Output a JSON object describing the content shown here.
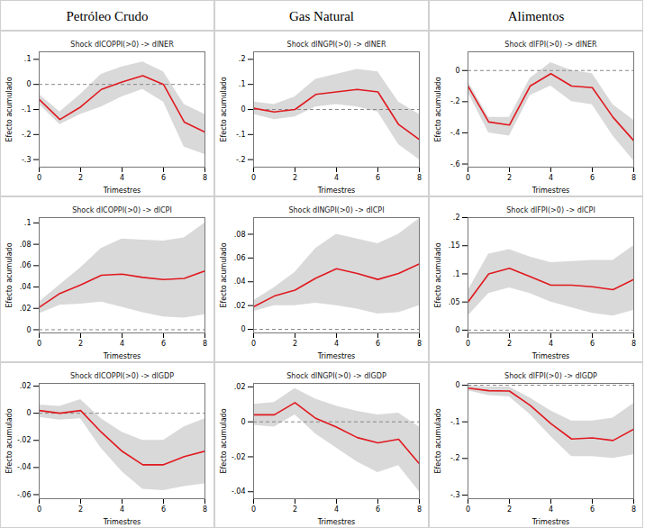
{
  "column_headers": [
    "Petróleo Crudo",
    "Gas Natural",
    "Alimentos"
  ],
  "chart_data": [
    {
      "type": "line",
      "title": "Shock dlCOPPI(>0) -> dlNER",
      "xlabel": "Trimestres",
      "ylabel": "Efecto acumulado",
      "color": "#e0191f",
      "x": [
        0,
        1,
        2,
        3,
        4,
        5,
        6,
        7,
        8
      ],
      "values": [
        -0.06,
        -0.14,
        -0.09,
        -0.02,
        0.01,
        0.035,
        0.0,
        -0.15,
        -0.19
      ],
      "lower": [
        -0.08,
        -0.16,
        -0.12,
        -0.09,
        -0.05,
        -0.02,
        -0.07,
        -0.25,
        -0.28
      ],
      "upper": [
        -0.04,
        -0.11,
        -0.04,
        0.04,
        0.07,
        0.09,
        0.05,
        -0.08,
        -0.12
      ],
      "reference_line": 0,
      "xlim": [
        0,
        8
      ],
      "xticks": [
        0,
        2,
        4,
        6,
        8
      ],
      "ylim": [
        -0.33,
        0.13
      ],
      "yticks": [
        {
          "value": 0.1,
          "label": ".1"
        },
        0,
        {
          "value": -0.1,
          "label": "-.1"
        },
        {
          "value": -0.2,
          "label": "-.2"
        },
        {
          "value": -0.3,
          "label": "-.3"
        }
      ]
    },
    {
      "type": "line",
      "title": "Shock dlNGPI(>0) -> dlNER",
      "xlabel": "Trimestres",
      "ylabel": "Efecto acumulado",
      "color": "#e0191f",
      "x": [
        0,
        1,
        2,
        3,
        4,
        5,
        6,
        7,
        8
      ],
      "values": [
        0.005,
        -0.01,
        0.0,
        0.06,
        0.07,
        0.08,
        0.07,
        -0.06,
        -0.12
      ],
      "lower": [
        -0.02,
        -0.04,
        -0.03,
        0.01,
        0.02,
        0.01,
        -0.01,
        -0.14,
        -0.2
      ],
      "upper": [
        0.03,
        0.02,
        0.05,
        0.12,
        0.14,
        0.16,
        0.15,
        0.03,
        -0.02
      ],
      "reference_line": 0,
      "xlim": [
        0,
        8
      ],
      "xticks": [
        0,
        2,
        4,
        6,
        8
      ],
      "ylim": [
        -0.23,
        0.23
      ],
      "yticks": [
        {
          "value": 0.2,
          "label": ".2"
        },
        {
          "value": 0.1,
          "label": ".1"
        },
        0,
        {
          "value": -0.1,
          "label": "-.1"
        },
        {
          "value": -0.2,
          "label": "-.2"
        }
      ]
    },
    {
      "type": "line",
      "title": "Shock dlFPI(>0) -> dlNER",
      "xlabel": "Trimestres",
      "ylabel": "Efecto acumulado",
      "color": "#e0191f",
      "x": [
        0,
        1,
        2,
        3,
        4,
        5,
        6,
        7,
        8
      ],
      "values": [
        -0.1,
        -0.33,
        -0.35,
        -0.1,
        -0.02,
        -0.1,
        -0.11,
        -0.3,
        -0.45
      ],
      "lower": [
        -0.14,
        -0.4,
        -0.42,
        -0.16,
        -0.1,
        -0.2,
        -0.22,
        -0.42,
        -0.58
      ],
      "upper": [
        -0.07,
        -0.3,
        -0.3,
        -0.05,
        0.05,
        0.0,
        -0.02,
        -0.22,
        -0.32
      ],
      "reference_line": 0,
      "xlim": [
        0,
        8
      ],
      "xticks": [
        0,
        2,
        4,
        6,
        8
      ],
      "ylim": [
        -0.62,
        0.12
      ],
      "yticks": [
        0,
        {
          "value": -0.2,
          "label": "-.2"
        },
        {
          "value": -0.4,
          "label": "-.4"
        },
        {
          "value": -0.6,
          "label": "-.6"
        }
      ]
    },
    {
      "type": "line",
      "title": "Shock dlCOPPI(>0) -> dlCPI",
      "xlabel": "Trimestres",
      "ylabel": "Efecto acumulado",
      "color": "#e0191f",
      "x": [
        0,
        1,
        2,
        3,
        4,
        5,
        6,
        7,
        8
      ],
      "values": [
        0.021,
        0.034,
        0.042,
        0.051,
        0.052,
        0.049,
        0.047,
        0.048,
        0.055
      ],
      "lower": [
        0.015,
        0.023,
        0.024,
        0.026,
        0.021,
        0.016,
        0.012,
        0.011,
        0.014
      ],
      "upper": [
        0.026,
        0.042,
        0.058,
        0.076,
        0.085,
        0.084,
        0.083,
        0.086,
        0.1
      ],
      "reference_line": 0,
      "xlim": [
        0,
        8
      ],
      "xticks": [
        0,
        2,
        4,
        6,
        8
      ],
      "ylim": [
        -0.003,
        0.105
      ],
      "yticks": [
        {
          "value": 0.1,
          "label": ".1"
        },
        {
          "value": 0.08,
          "label": ".08"
        },
        {
          "value": 0.06,
          "label": ".06"
        },
        {
          "value": 0.04,
          "label": ".04"
        },
        {
          "value": 0.02,
          "label": ".02"
        },
        0
      ]
    },
    {
      "type": "line",
      "title": "Shock dlNGPI(>0) -> dlCPI",
      "xlabel": "Trimestres",
      "ylabel": "Efecto acumulado",
      "color": "#e0191f",
      "x": [
        0,
        1,
        2,
        3,
        4,
        5,
        6,
        7,
        8
      ],
      "values": [
        0.019,
        0.028,
        0.033,
        0.043,
        0.051,
        0.047,
        0.042,
        0.047,
        0.055
      ],
      "lower": [
        0.015,
        0.02,
        0.02,
        0.022,
        0.02,
        0.017,
        0.013,
        0.014,
        0.02
      ],
      "upper": [
        0.024,
        0.035,
        0.048,
        0.068,
        0.08,
        0.076,
        0.072,
        0.08,
        0.093
      ],
      "reference_line": 0,
      "xlim": [
        0,
        8
      ],
      "xticks": [
        0,
        2,
        4,
        6,
        8
      ],
      "ylim": [
        -0.003,
        0.094
      ],
      "yticks": [
        {
          "value": 0.08,
          "label": ".08"
        },
        {
          "value": 0.06,
          "label": ".06"
        },
        {
          "value": 0.04,
          "label": ".04"
        },
        {
          "value": 0.02,
          "label": ".02"
        },
        0
      ]
    },
    {
      "type": "line",
      "title": "Shock dlFPI(>0) -> dlCPI",
      "xlabel": "Trimestres",
      "ylabel": "Efecto acumulado",
      "color": "#e0191f",
      "x": [
        0,
        1,
        2,
        3,
        4,
        5,
        6,
        7,
        8
      ],
      "values": [
        0.05,
        0.1,
        0.11,
        0.095,
        0.08,
        0.08,
        0.077,
        0.072,
        0.09
      ],
      "lower": [
        0.025,
        0.065,
        0.075,
        0.065,
        0.05,
        0.04,
        0.03,
        0.025,
        0.035
      ],
      "upper": [
        0.07,
        0.135,
        0.143,
        0.13,
        0.12,
        0.122,
        0.124,
        0.124,
        0.15
      ],
      "reference_line": 0,
      "xlim": [
        0,
        8
      ],
      "xticks": [
        0,
        2,
        4,
        6,
        8
      ],
      "ylim": [
        -0.005,
        0.2
      ],
      "yticks": [
        {
          "value": 0.2,
          "label": ".2"
        },
        {
          "value": 0.15,
          "label": ".15"
        },
        {
          "value": 0.1,
          "label": ".1"
        },
        {
          "value": 0.05,
          "label": ".05"
        },
        0
      ]
    },
    {
      "type": "line",
      "title": "Shock dlCOPPI(>0) -> dlGDP",
      "xlabel": "Trimestres",
      "ylabel": "Efecto acumulado",
      "color": "#e0191f",
      "x": [
        0,
        1,
        2,
        3,
        4,
        5,
        6,
        7,
        8
      ],
      "values": [
        0.002,
        0.0,
        0.002,
        -0.014,
        -0.028,
        -0.038,
        -0.038,
        -0.032,
        -0.028
      ],
      "lower": [
        -0.003,
        -0.005,
        -0.004,
        -0.026,
        -0.043,
        -0.056,
        -0.057,
        -0.054,
        -0.052
      ],
      "upper": [
        0.006,
        0.005,
        0.01,
        -0.004,
        -0.014,
        -0.02,
        -0.02,
        -0.01,
        -0.004
      ],
      "reference_line": 0,
      "xlim": [
        0,
        8
      ],
      "xticks": [
        0,
        2,
        4,
        6,
        8
      ],
      "ylim": [
        -0.063,
        0.022
      ],
      "yticks": [
        {
          "value": 0.02,
          "label": ".02"
        },
        0,
        {
          "value": -0.02,
          "label": "-.02"
        },
        {
          "value": -0.04,
          "label": "-.04"
        },
        {
          "value": -0.06,
          "label": "-.06"
        }
      ]
    },
    {
      "type": "line",
      "title": "Shock dlNGPI(>0) -> dlGDP",
      "xlabel": "Trimestres",
      "ylabel": "Efecto acumulado",
      "color": "#e0191f",
      "x": [
        0,
        1,
        2,
        3,
        4,
        5,
        6,
        7,
        8
      ],
      "values": [
        0.004,
        0.004,
        0.011,
        0.002,
        -0.003,
        -0.009,
        -0.012,
        -0.01,
        -0.024
      ],
      "lower": [
        -0.002,
        -0.003,
        0.004,
        -0.007,
        -0.015,
        -0.023,
        -0.029,
        -0.025,
        -0.04
      ],
      "upper": [
        0.01,
        0.011,
        0.019,
        0.013,
        0.009,
        0.006,
        0.004,
        0.005,
        -0.003
      ],
      "reference_line": 0,
      "xlim": [
        0,
        8
      ],
      "xticks": [
        0,
        2,
        4,
        6,
        8
      ],
      "ylim": [
        -0.044,
        0.022
      ],
      "yticks": [
        {
          "value": 0.02,
          "label": ".02"
        },
        0,
        {
          "value": -0.02,
          "label": "-.02"
        },
        {
          "value": -0.04,
          "label": "-.04"
        }
      ]
    },
    {
      "type": "line",
      "title": "Shock dlFPI(>0) -> dlGDP",
      "xlabel": "Trimestres",
      "ylabel": "Efecto acumulado",
      "color": "#e0191f",
      "x": [
        0,
        1,
        2,
        3,
        4,
        5,
        6,
        7,
        8
      ],
      "values": [
        -0.008,
        -0.015,
        -0.016,
        -0.055,
        -0.105,
        -0.147,
        -0.144,
        -0.151,
        -0.12
      ],
      "lower": [
        -0.015,
        -0.028,
        -0.032,
        -0.08,
        -0.14,
        -0.195,
        -0.195,
        -0.2,
        -0.19
      ],
      "upper": [
        -0.002,
        -0.005,
        -0.005,
        -0.035,
        -0.07,
        -0.098,
        -0.098,
        -0.09,
        -0.05
      ],
      "reference_line": 0,
      "xlim": [
        0,
        8
      ],
      "xticks": [
        0,
        2,
        4,
        6,
        8
      ],
      "ylim": [
        -0.31,
        0.005
      ],
      "yticks": [
        0,
        {
          "value": -0.1,
          "label": "-.1"
        },
        {
          "value": -0.2,
          "label": "-.2"
        },
        {
          "value": -0.3,
          "label": "-.3"
        }
      ]
    }
  ]
}
